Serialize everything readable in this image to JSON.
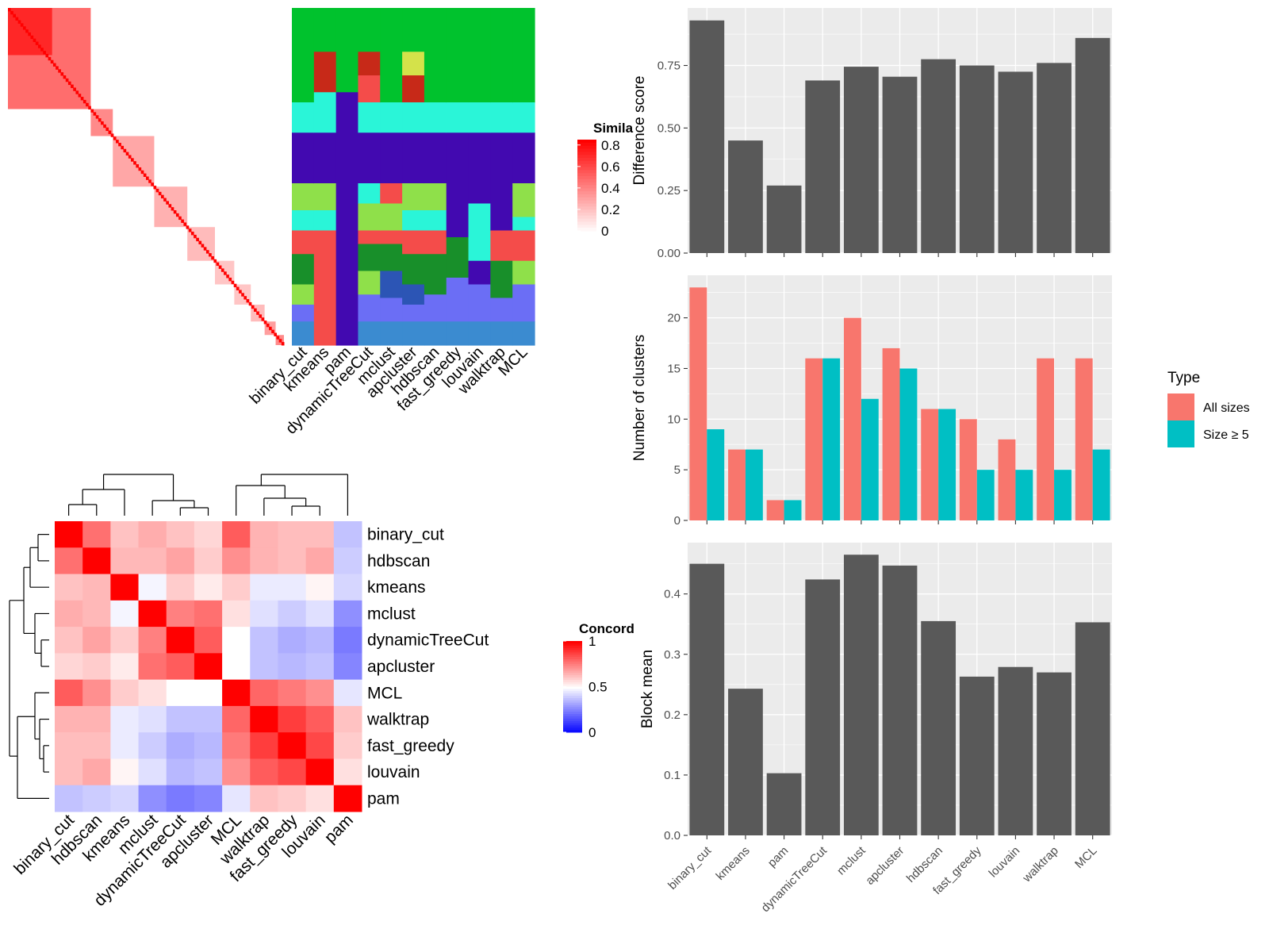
{
  "methods": [
    "binary_cut",
    "kmeans",
    "pam",
    "dynamicTreeCut",
    "mclust",
    "apcluster",
    "hdbscan",
    "fast_greedy",
    "louvain",
    "walktrap",
    "MCL"
  ],
  "similarity_legend": {
    "title": "Simila",
    "ticks": [
      "0.8",
      "0.6",
      "0.4",
      "0.2",
      "0"
    ]
  },
  "concordance_legend": {
    "title": "Concord",
    "ticks": [
      "1",
      "0.5",
      "0"
    ]
  },
  "chart_data": [
    {
      "type": "heatmap",
      "title": "",
      "note": "term-term similarity matrix ordered by binary_cut clusters (blocks along diagonal)",
      "blocks": [
        {
          "size": 0.3,
          "value": 0.75
        },
        {
          "size": 0.08,
          "value": 0.6
        },
        {
          "size": 0.15,
          "value": 0.45
        },
        {
          "size": 0.12,
          "value": 0.4
        },
        {
          "size": 0.1,
          "value": 0.35
        },
        {
          "size": 0.07,
          "value": 0.3
        },
        {
          "size": 0.06,
          "value": 0.3
        },
        {
          "size": 0.05,
          "value": 0.35
        },
        {
          "size": 0.04,
          "value": 0.5
        },
        {
          "size": 0.03,
          "value": 0.6
        }
      ],
      "legend": {
        "title": "Simila",
        "range": [
          0,
          0.85
        ]
      }
    },
    {
      "type": "heatmap",
      "title": "",
      "note": "cluster label assignment per method (columns) for each term (rows)",
      "columns": [
        "binary_cut",
        "kmeans",
        "pam",
        "dynamicTreeCut",
        "mclust",
        "apcluster",
        "hdbscan",
        "fast_greedy",
        "louvain",
        "walktrap",
        "MCL"
      ]
    },
    {
      "type": "bar",
      "categories": [
        "binary_cut",
        "kmeans",
        "pam",
        "dynamicTreeCut",
        "mclust",
        "apcluster",
        "hdbscan",
        "fast_greedy",
        "louvain",
        "walktrap",
        "MCL"
      ],
      "values": [
        0.93,
        0.45,
        0.27,
        0.69,
        0.745,
        0.705,
        0.775,
        0.75,
        0.725,
        0.76,
        0.86
      ],
      "ylabel": "Difference score",
      "yticks": [
        "0.00",
        "0.25",
        "0.50",
        "0.75"
      ],
      "ylim": [
        0,
        0.98
      ]
    },
    {
      "type": "bar",
      "categories": [
        "binary_cut",
        "kmeans",
        "pam",
        "dynamicTreeCut",
        "mclust",
        "apcluster",
        "hdbscan",
        "fast_greedy",
        "louvain",
        "walktrap",
        "MCL"
      ],
      "series": [
        {
          "name": "All sizes",
          "values": [
            23,
            7,
            2,
            16,
            20,
            17,
            11,
            10,
            8,
            16,
            16
          ]
        },
        {
          "name": "Size ≥ 5",
          "values": [
            9,
            7,
            2,
            16,
            12,
            15,
            11,
            5,
            5,
            5,
            7
          ]
        }
      ],
      "ylabel": "Number of clusters",
      "yticks": [
        "0",
        "5",
        "10",
        "15",
        "20"
      ],
      "ylim": [
        0,
        24.2
      ],
      "legend": {
        "title": "Type",
        "placement": "right"
      }
    },
    {
      "type": "bar",
      "categories": [
        "binary_cut",
        "kmeans",
        "pam",
        "dynamicTreeCut",
        "mclust",
        "apcluster",
        "hdbscan",
        "fast_greedy",
        "louvain",
        "walktrap",
        "MCL"
      ],
      "values": [
        0.45,
        0.243,
        0.103,
        0.424,
        0.465,
        0.447,
        0.355,
        0.263,
        0.279,
        0.27,
        0.353
      ],
      "ylabel": "Block mean",
      "yticks": [
        "0.0",
        "0.1",
        "0.2",
        "0.3",
        "0.4"
      ],
      "ylim": [
        0,
        0.485
      ]
    },
    {
      "type": "heatmap",
      "title": "",
      "rows": [
        "binary_cut",
        "hdbscan",
        "kmeans",
        "mclust",
        "dynamicTreeCut",
        "apcluster",
        "MCL",
        "walktrap",
        "fast_greedy",
        "louvain",
        "pam"
      ],
      "columns": [
        "binary_cut",
        "hdbscan",
        "kmeans",
        "mclust",
        "dynamicTreeCut",
        "apcluster",
        "MCL",
        "walktrap",
        "fast_greedy",
        "louvain",
        "pam"
      ],
      "values": [
        [
          1.0,
          0.78,
          0.62,
          0.66,
          0.62,
          0.58,
          0.82,
          0.65,
          0.63,
          0.63,
          0.38
        ],
        [
          0.78,
          1.0,
          0.64,
          0.64,
          0.68,
          0.6,
          0.72,
          0.65,
          0.63,
          0.67,
          0.4
        ],
        [
          0.62,
          0.64,
          1.0,
          0.48,
          0.6,
          0.54,
          0.6,
          0.46,
          0.46,
          0.52,
          0.42
        ],
        [
          0.66,
          0.64,
          0.48,
          1.0,
          0.75,
          0.78,
          0.56,
          0.44,
          0.4,
          0.44,
          0.28
        ],
        [
          0.62,
          0.68,
          0.6,
          0.75,
          1.0,
          0.82,
          0.5,
          0.38,
          0.34,
          0.36,
          0.24
        ],
        [
          0.58,
          0.6,
          0.54,
          0.78,
          0.82,
          1.0,
          0.5,
          0.38,
          0.36,
          0.38,
          0.26
        ],
        [
          0.82,
          0.72,
          0.6,
          0.56,
          0.5,
          0.5,
          1.0,
          0.8,
          0.76,
          0.72,
          0.45
        ],
        [
          0.65,
          0.65,
          0.46,
          0.44,
          0.38,
          0.38,
          0.8,
          1.0,
          0.88,
          0.82,
          0.62
        ],
        [
          0.63,
          0.63,
          0.46,
          0.4,
          0.34,
          0.36,
          0.76,
          0.88,
          1.0,
          0.86,
          0.6
        ],
        [
          0.63,
          0.67,
          0.52,
          0.44,
          0.36,
          0.38,
          0.72,
          0.82,
          0.86,
          1.0,
          0.56
        ],
        [
          0.38,
          0.4,
          0.42,
          0.28,
          0.24,
          0.26,
          0.45,
          0.62,
          0.6,
          0.56,
          1.0
        ]
      ],
      "legend": {
        "title": "Concord",
        "range": [
          0,
          1
        ]
      }
    }
  ],
  "legend_type": {
    "title": "Type",
    "items": [
      {
        "label": "All sizes",
        "color": "#f8766d"
      },
      {
        "label": "Size ≥ 5",
        "color": "#00bfc4"
      }
    ]
  },
  "colors": {
    "bar_dark": "#595959",
    "panel_bg": "#ebebeb",
    "grid": "#ffffff",
    "all_sizes": "#f8766d",
    "size5": "#00bfc4"
  }
}
